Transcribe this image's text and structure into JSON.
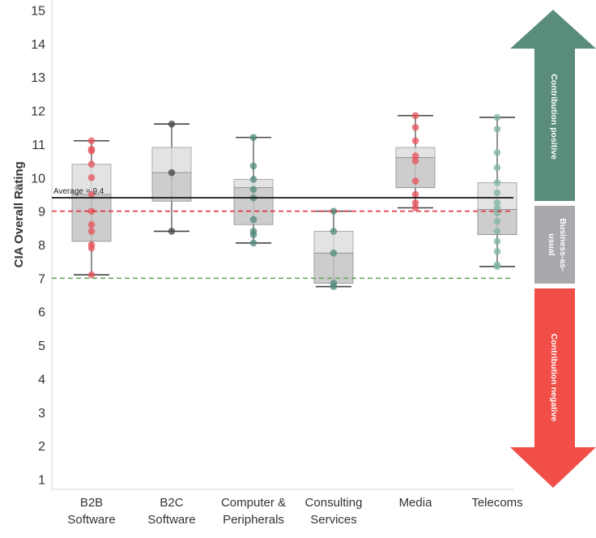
{
  "chart_data": {
    "type": "box",
    "ylabel": "CIA Overall Rating",
    "ylim": [
      0.7,
      15.3
    ],
    "yticks": [
      1,
      2,
      3,
      4,
      5,
      6,
      7,
      8,
      9,
      10,
      11,
      12,
      13,
      14,
      15
    ],
    "categories": [
      {
        "label": [
          "B2B",
          "Software"
        ],
        "min": 7.1,
        "q1": 8.1,
        "median": 9.5,
        "q3": 10.4,
        "max": 11.1,
        "color": "#e8525a",
        "points": [
          7.1,
          7.9,
          8.0,
          8.4,
          8.6,
          9.0,
          9.5,
          10.0,
          10.4,
          10.8,
          10.85,
          11.1
        ]
      },
      {
        "label": [
          "B2C",
          "Software"
        ],
        "min": 8.4,
        "q1": 9.3,
        "median": 10.15,
        "q3": 10.9,
        "max": 11.6,
        "color": "#444444",
        "points": [
          8.4,
          10.15,
          11.6
        ]
      },
      {
        "label": [
          "Computer &",
          "Peripherals"
        ],
        "min": 8.05,
        "q1": 8.6,
        "median": 9.7,
        "q3": 9.95,
        "max": 11.2,
        "color": "#4f8a7c",
        "points": [
          8.05,
          8.3,
          8.4,
          8.75,
          9.4,
          9.65,
          9.95,
          10.35,
          11.2
        ]
      },
      {
        "label": [
          "Consulting",
          "Services"
        ],
        "min": 6.75,
        "q1": 6.85,
        "median": 7.75,
        "q3": 8.4,
        "max": 9.0,
        "color": "#4f8a7c",
        "points": [
          6.75,
          6.85,
          7.75,
          8.4,
          9.0
        ]
      },
      {
        "label": [
          "Media"
        ],
        "min": 9.1,
        "q1": 9.7,
        "median": 10.6,
        "q3": 10.9,
        "max": 11.85,
        "color": "#e8525a",
        "points": [
          9.1,
          9.25,
          9.5,
          9.9,
          10.5,
          10.65,
          11.1,
          11.5,
          11.85
        ]
      },
      {
        "label": [
          "Telecoms"
        ],
        "min": 7.35,
        "q1": 8.3,
        "median": 9.05,
        "q3": 9.85,
        "max": 11.8,
        "color": "#7fb3a6",
        "points": [
          7.35,
          7.4,
          7.8,
          8.1,
          8.4,
          8.7,
          8.95,
          9.1,
          9.25,
          9.55,
          9.85,
          10.3,
          10.75,
          11.45,
          11.8
        ]
      }
    ],
    "reference_lines": [
      {
        "name": "Average",
        "value": 9.4,
        "label": "Average = 9.4",
        "color": "#222222",
        "style": "solid"
      },
      {
        "value": 9.0,
        "color": "#e0262e",
        "style": "dashed"
      },
      {
        "value": 7.0,
        "color": "#55a844",
        "style": "dashed"
      }
    ],
    "bands": [
      {
        "label": [
          "Contribution positive"
        ],
        "from": 9.4,
        "to": 15.3,
        "color": "#5a8c7c",
        "shape": "arrow-up"
      },
      {
        "label": [
          "Business-as-",
          "usual"
        ],
        "from": 7.0,
        "to": 9.4,
        "color": "#a8a8ad",
        "shape": "rect"
      },
      {
        "label": [
          "Contribution negative"
        ],
        "from": 0.7,
        "to": 7.0,
        "color": "#f04e46",
        "shape": "arrow-down"
      }
    ]
  }
}
